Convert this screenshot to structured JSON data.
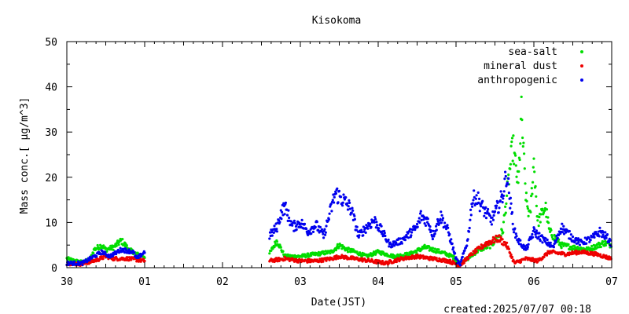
{
  "chart_data": {
    "type": "scatter",
    "title": "Kisokoma",
    "xlabel": "Date(JST)",
    "ylabel": "Mass conc.[ µg/m^3]",
    "created": "created:2025/07/07 00:18",
    "x_ticks": [
      "30",
      "01",
      "02",
      "03",
      "04",
      "05",
      "06",
      "07"
    ],
    "y_ticks": [
      "0",
      "10",
      "20",
      "30",
      "40",
      "50"
    ],
    "xlim": [
      0,
      7
    ],
    "ylim": [
      0,
      50
    ],
    "grid": false,
    "legend_position": "top-right",
    "gaps": [
      [
        1.01,
        2.58
      ]
    ],
    "series": [
      {
        "name": "sea-salt",
        "color": "#00dd00",
        "points": [
          [
            0,
            2.0
          ],
          [
            0.1,
            1.5
          ],
          [
            0.2,
            1.2
          ],
          [
            0.3,
            1.8
          ],
          [
            0.35,
            4.0
          ],
          [
            0.45,
            5.0
          ],
          [
            0.5,
            4.0
          ],
          [
            0.6,
            4.5
          ],
          [
            0.7,
            6.0
          ],
          [
            0.8,
            4.0
          ],
          [
            0.9,
            3.0
          ],
          [
            1.0,
            2.5
          ],
          [
            2.6,
            3.0
          ],
          [
            2.7,
            6.0
          ],
          [
            2.8,
            2.5
          ],
          [
            3.0,
            2.5
          ],
          [
            3.2,
            3.0
          ],
          [
            3.4,
            3.5
          ],
          [
            3.5,
            5.0
          ],
          [
            3.6,
            4.0
          ],
          [
            3.7,
            3.5
          ],
          [
            3.85,
            2.5
          ],
          [
            4.0,
            3.5
          ],
          [
            4.2,
            2.5
          ],
          [
            4.4,
            3.0
          ],
          [
            4.6,
            4.5
          ],
          [
            4.8,
            3.5
          ],
          [
            4.95,
            2.5
          ],
          [
            5.05,
            1.0
          ],
          [
            5.15,
            2.0
          ],
          [
            5.3,
            4.0
          ],
          [
            5.45,
            5.0
          ],
          [
            5.6,
            8.0
          ],
          [
            5.68,
            20.0
          ],
          [
            5.73,
            27.0
          ],
          [
            5.8,
            18.0
          ],
          [
            5.84,
            34.0
          ],
          [
            5.9,
            15.0
          ],
          [
            5.95,
            11.0
          ],
          [
            6.0,
            23.5
          ],
          [
            6.05,
            10.0
          ],
          [
            6.15,
            13.5
          ],
          [
            6.2,
            8.0
          ],
          [
            6.35,
            5.0
          ],
          [
            6.5,
            4.5
          ],
          [
            6.7,
            4.0
          ],
          [
            6.9,
            5.5
          ],
          [
            7.0,
            5.0
          ]
        ]
      },
      {
        "name": "mineral dust",
        "color": "#ee0000",
        "points": [
          [
            0,
            1.0
          ],
          [
            0.2,
            0.8
          ],
          [
            0.4,
            1.8
          ],
          [
            0.5,
            2.5
          ],
          [
            0.6,
            2.0
          ],
          [
            0.8,
            2.0
          ],
          [
            1.0,
            1.5
          ],
          [
            2.6,
            1.5
          ],
          [
            2.8,
            2.0
          ],
          [
            3.0,
            1.5
          ],
          [
            3.2,
            1.5
          ],
          [
            3.4,
            2.0
          ],
          [
            3.5,
            2.5
          ],
          [
            3.7,
            2.0
          ],
          [
            3.9,
            1.5
          ],
          [
            4.1,
            1.0
          ],
          [
            4.3,
            2.0
          ],
          [
            4.5,
            2.5
          ],
          [
            4.7,
            2.0
          ],
          [
            4.9,
            1.5
          ],
          [
            5.05,
            0.5
          ],
          [
            5.2,
            3.0
          ],
          [
            5.4,
            5.5
          ],
          [
            5.55,
            6.5
          ],
          [
            5.65,
            5.0
          ],
          [
            5.75,
            1.0
          ],
          [
            5.9,
            2.0
          ],
          [
            6.05,
            1.5
          ],
          [
            6.2,
            3.5
          ],
          [
            6.4,
            3.0
          ],
          [
            6.6,
            3.5
          ],
          [
            6.8,
            3.0
          ],
          [
            7.0,
            2.0
          ]
        ]
      },
      {
        "name": "anthropogenic",
        "color": "#0000ee",
        "points": [
          [
            0,
            1.0
          ],
          [
            0.2,
            1.0
          ],
          [
            0.35,
            2.5
          ],
          [
            0.45,
            3.5
          ],
          [
            0.55,
            2.5
          ],
          [
            0.7,
            4.0
          ],
          [
            0.85,
            3.5
          ],
          [
            0.9,
            2.0
          ],
          [
            1.0,
            3.5
          ],
          [
            2.6,
            7.0
          ],
          [
            2.7,
            9.0
          ],
          [
            2.75,
            12.0
          ],
          [
            2.8,
            13.5
          ],
          [
            2.9,
            9.0
          ],
          [
            3.0,
            10.0
          ],
          [
            3.1,
            8.0
          ],
          [
            3.2,
            9.5
          ],
          [
            3.3,
            7.0
          ],
          [
            3.45,
            16.5
          ],
          [
            3.55,
            15.0
          ],
          [
            3.65,
            13.0
          ],
          [
            3.7,
            10.0
          ],
          [
            3.75,
            7.0
          ],
          [
            3.85,
            9.0
          ],
          [
            3.95,
            10.5
          ],
          [
            4.05,
            8.0
          ],
          [
            4.15,
            5.0
          ],
          [
            4.3,
            6.0
          ],
          [
            4.4,
            7.5
          ],
          [
            4.5,
            9.0
          ],
          [
            4.55,
            11.5
          ],
          [
            4.65,
            10.0
          ],
          [
            4.7,
            7.0
          ],
          [
            4.8,
            11.5
          ],
          [
            4.9,
            8.0
          ],
          [
            5.0,
            2.0
          ],
          [
            5.05,
            0.5
          ],
          [
            5.15,
            6.0
          ],
          [
            5.2,
            14.0
          ],
          [
            5.25,
            16.0
          ],
          [
            5.35,
            13.0
          ],
          [
            5.45,
            10.5
          ],
          [
            5.5,
            12.0
          ],
          [
            5.6,
            16.0
          ],
          [
            5.65,
            21.0
          ],
          [
            5.7,
            14.0
          ],
          [
            5.75,
            8.0
          ],
          [
            5.8,
            6.0
          ],
          [
            5.9,
            4.0
          ],
          [
            6.0,
            8.0
          ],
          [
            6.1,
            6.5
          ],
          [
            6.25,
            4.5
          ],
          [
            6.35,
            9.0
          ],
          [
            6.5,
            6.5
          ],
          [
            6.6,
            5.5
          ],
          [
            6.75,
            6.5
          ],
          [
            6.85,
            8.0
          ],
          [
            6.95,
            6.5
          ],
          [
            7.0,
            5.0
          ]
        ]
      }
    ]
  }
}
